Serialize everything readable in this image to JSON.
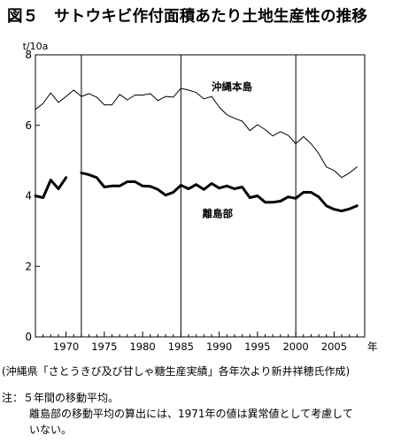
{
  "title": "図５　サトウキビ作付面積あたり土地生産性の推移",
  "source": "(沖縄県「さとうきび及び甘しゃ糖生産実績」各年次より新井祥穂氏作成)",
  "notes": {
    "line1": "注：５年間の移動平均。",
    "line2": "離島部の移動平均の算出には、1971年の値は異常値として考慮して",
    "line3": "いない。"
  },
  "chart_data": {
    "type": "line",
    "ylabel": "t/10a",
    "xlabel": "年",
    "ylim": [
      0,
      8
    ],
    "xlim": [
      1966,
      2009
    ],
    "yticks": [
      0,
      2,
      4,
      6,
      8
    ],
    "xticks": [
      1970,
      1975,
      1980,
      1985,
      1990,
      1995,
      2000,
      2005
    ],
    "vlines": [
      1972,
      1985,
      2000
    ],
    "series": [
      {
        "name": "沖縄本島",
        "style": "thin",
        "segments": [
          {
            "x": [
              1966,
              1967,
              1968,
              1969,
              1970,
              1971,
              1972,
              1973,
              1974,
              1975,
              1976,
              1977,
              1978,
              1979,
              1980,
              1981,
              1982,
              1983,
              1984,
              1985,
              1986,
              1987,
              1988,
              1989,
              1990,
              1991,
              1992,
              1993,
              1994,
              1995,
              1996,
              1997,
              1998,
              1999,
              2000,
              2001,
              2002,
              2003,
              2004,
              2005,
              2006,
              2007,
              2008
            ],
            "y": [
              6.45,
              6.62,
              6.92,
              6.65,
              6.82,
              7.0,
              6.82,
              6.9,
              6.8,
              6.58,
              6.58,
              6.88,
              6.72,
              6.86,
              6.86,
              6.9,
              6.7,
              6.82,
              6.8,
              7.05,
              7.0,
              6.93,
              6.75,
              6.82,
              6.52,
              6.3,
              6.2,
              6.12,
              5.85,
              6.02,
              5.88,
              5.7,
              5.82,
              5.72,
              5.48,
              5.68,
              5.48,
              5.2,
              4.82,
              4.72,
              4.52,
              4.65,
              4.82
            ]
          }
        ]
      },
      {
        "name": "離島部",
        "style": "thick",
        "segments": [
          {
            "x": [
              1966,
              1967,
              1968,
              1969,
              1970
            ],
            "y": [
              4.0,
              3.95,
              4.45,
              4.2,
              4.52
            ]
          },
          {
            "x": [
              1972,
              1973,
              1974,
              1975,
              1976,
              1977,
              1978,
              1979,
              1980,
              1981,
              1982,
              1983,
              1984,
              1985,
              1986,
              1987,
              1988,
              1989,
              1990,
              1991,
              1992,
              1993,
              1994,
              1995,
              1996,
              1997,
              1998,
              1999,
              2000,
              2001,
              2002,
              2003,
              2004,
              2005,
              2006,
              2007,
              2008
            ],
            "y": [
              4.65,
              4.6,
              4.52,
              4.25,
              4.28,
              4.28,
              4.4,
              4.4,
              4.28,
              4.27,
              4.18,
              4.02,
              4.1,
              4.3,
              4.2,
              4.32,
              4.18,
              4.35,
              4.22,
              4.28,
              4.2,
              4.25,
              3.95,
              4.0,
              3.82,
              3.82,
              3.85,
              3.97,
              3.93,
              4.1,
              4.1,
              3.97,
              3.72,
              3.62,
              3.57,
              3.63,
              3.72
            ]
          }
        ]
      }
    ]
  }
}
